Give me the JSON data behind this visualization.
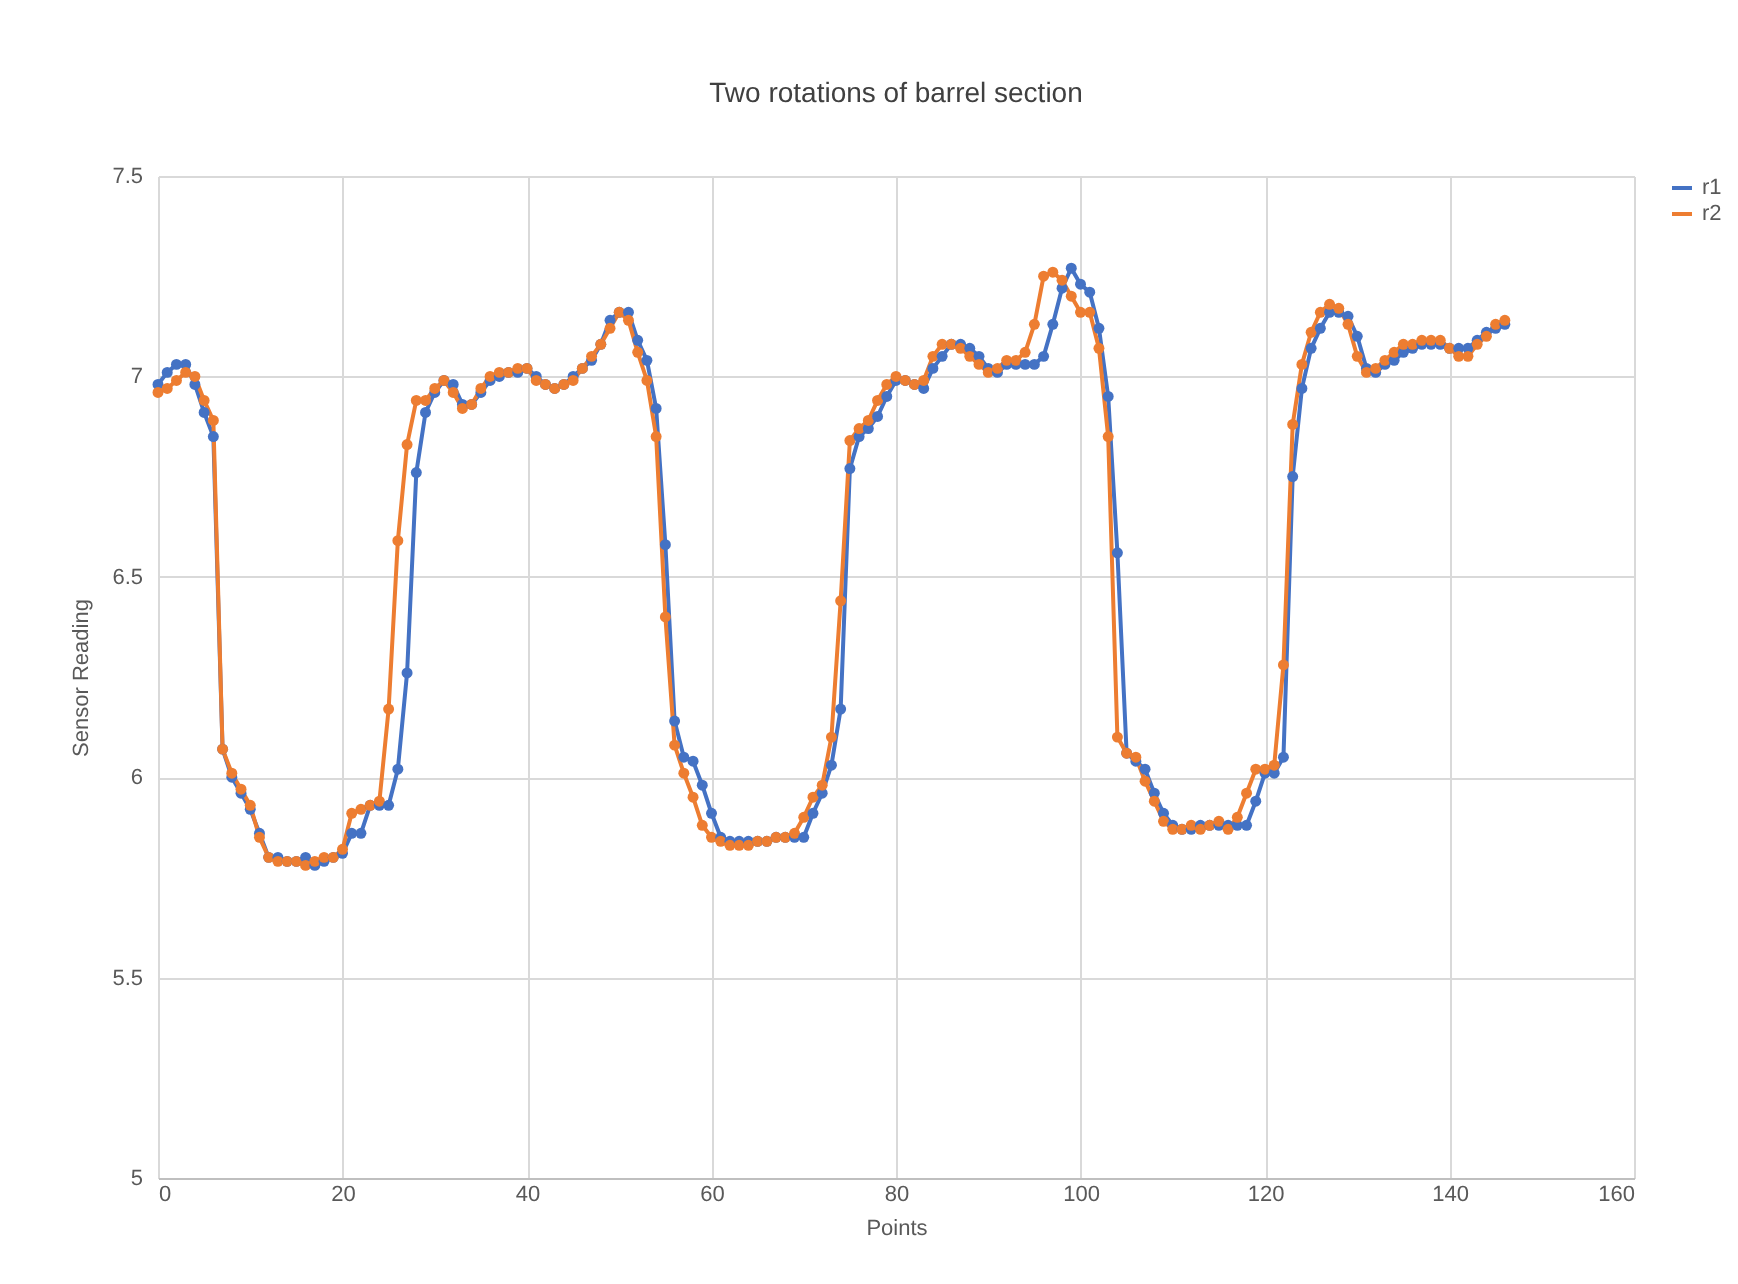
{
  "chart_data": {
    "type": "line",
    "title": "Two rotations of barrel section",
    "xlabel": "Points",
    "ylabel": "Sensor Reading",
    "x": [
      0,
      1,
      2,
      3,
      4,
      5,
      6,
      7,
      8,
      9,
      10,
      11,
      12,
      13,
      14,
      15,
      16,
      17,
      18,
      19,
      20,
      21,
      22,
      23,
      24,
      25,
      26,
      27,
      28,
      29,
      30,
      31,
      32,
      33,
      34,
      35,
      36,
      37,
      38,
      39,
      40,
      41,
      42,
      43,
      44,
      45,
      46,
      47,
      48,
      49,
      50,
      51,
      52,
      53,
      54,
      55,
      56,
      57,
      58,
      59,
      60,
      61,
      62,
      63,
      64,
      65,
      66,
      67,
      68,
      69,
      70,
      71,
      72,
      73,
      74,
      75,
      76,
      77,
      78,
      79,
      80,
      81,
      82,
      83,
      84,
      85,
      86,
      87,
      88,
      89,
      90,
      91,
      92,
      93,
      94,
      95,
      96,
      97,
      98,
      99,
      100,
      101,
      102,
      103,
      104,
      105,
      106,
      107,
      108,
      109,
      110,
      111,
      112,
      113,
      114,
      115,
      116,
      117,
      118,
      119,
      120,
      121,
      122,
      123,
      124,
      125,
      126,
      127,
      128,
      129,
      130,
      131,
      132,
      133,
      134,
      135,
      136,
      137,
      138,
      139,
      140,
      141,
      142,
      143,
      144,
      145,
      146
    ],
    "series": [
      {
        "name": "r1",
        "color": "#4472c4",
        "values": [
          6.98,
          7.01,
          7.03,
          7.03,
          6.98,
          6.91,
          6.85,
          6.07,
          6.0,
          5.96,
          5.92,
          5.86,
          5.8,
          5.8,
          5.79,
          5.79,
          5.8,
          5.78,
          5.79,
          5.8,
          5.81,
          5.86,
          5.86,
          5.93,
          5.93,
          5.93,
          6.02,
          6.26,
          6.76,
          6.91,
          6.96,
          6.99,
          6.98,
          6.93,
          6.93,
          6.96,
          6.99,
          7.0,
          7.01,
          7.01,
          7.02,
          7.0,
          6.98,
          6.97,
          6.98,
          7.0,
          7.02,
          7.04,
          7.08,
          7.14,
          7.16,
          7.16,
          7.09,
          7.04,
          6.92,
          6.58,
          6.14,
          6.05,
          6.04,
          5.98,
          5.91,
          5.85,
          5.84,
          5.84,
          5.84,
          5.84,
          5.84,
          5.85,
          5.85,
          5.85,
          5.85,
          5.91,
          5.96,
          6.03,
          6.17,
          6.77,
          6.85,
          6.87,
          6.9,
          6.95,
          6.99,
          6.99,
          6.98,
          6.97,
          7.02,
          7.05,
          7.08,
          7.08,
          7.07,
          7.05,
          7.02,
          7.01,
          7.03,
          7.03,
          7.03,
          7.03,
          7.05,
          7.13,
          7.22,
          7.27,
          7.23,
          7.21,
          7.12,
          6.95,
          6.56,
          6.06,
          6.04,
          6.02,
          5.96,
          5.91,
          5.88,
          5.87,
          5.87,
          5.88,
          5.88,
          5.88,
          5.88,
          5.88,
          5.88,
          5.94,
          6.01,
          6.01,
          6.05,
          6.75,
          6.97,
          7.07,
          7.12,
          7.16,
          7.16,
          7.15,
          7.1,
          7.02,
          7.01,
          7.03,
          7.04,
          7.06,
          7.07,
          7.08,
          7.08,
          7.08,
          7.07,
          7.07,
          7.07,
          7.09,
          7.11,
          7.12,
          7.13
        ]
      },
      {
        "name": "r2",
        "color": "#ed7d31",
        "values": [
          6.96,
          6.97,
          6.99,
          7.01,
          7.0,
          6.94,
          6.89,
          6.07,
          6.01,
          5.97,
          5.93,
          5.85,
          5.8,
          5.79,
          5.79,
          5.79,
          5.78,
          5.79,
          5.8,
          5.8,
          5.82,
          5.91,
          5.92,
          5.93,
          5.94,
          6.17,
          6.59,
          6.83,
          6.94,
          6.94,
          6.97,
          6.99,
          6.96,
          6.92,
          6.93,
          6.97,
          7.0,
          7.01,
          7.01,
          7.02,
          7.02,
          6.99,
          6.98,
          6.97,
          6.98,
          6.99,
          7.02,
          7.05,
          7.08,
          7.12,
          7.16,
          7.14,
          7.06,
          6.99,
          6.85,
          6.4,
          6.08,
          6.01,
          5.95,
          5.88,
          5.85,
          5.84,
          5.83,
          5.83,
          5.83,
          5.84,
          5.84,
          5.85,
          5.85,
          5.86,
          5.9,
          5.95,
          5.98,
          6.1,
          6.44,
          6.84,
          6.87,
          6.89,
          6.94,
          6.98,
          7.0,
          6.99,
          6.98,
          6.99,
          7.05,
          7.08,
          7.08,
          7.07,
          7.05,
          7.03,
          7.01,
          7.02,
          7.04,
          7.04,
          7.06,
          7.13,
          7.25,
          7.26,
          7.24,
          7.2,
          7.16,
          7.16,
          7.07,
          6.85,
          6.1,
          6.06,
          6.05,
          5.99,
          5.94,
          5.89,
          5.87,
          5.87,
          5.88,
          5.87,
          5.88,
          5.89,
          5.87,
          5.9,
          5.96,
          6.02,
          6.02,
          6.03,
          6.28,
          6.88,
          7.03,
          7.11,
          7.16,
          7.18,
          7.17,
          7.13,
          7.05,
          7.01,
          7.02,
          7.04,
          7.06,
          7.08,
          7.08,
          7.09,
          7.09,
          7.09,
          7.07,
          7.05,
          7.05,
          7.08,
          7.1,
          7.13,
          7.14
        ]
      }
    ],
    "xlim": [
      0,
      160
    ],
    "xticks": [
      0,
      20,
      40,
      60,
      80,
      100,
      120,
      140,
      160
    ],
    "ylim": [
      5,
      7.5
    ],
    "yticks": [
      5,
      5.5,
      6,
      6.5,
      7,
      7.5
    ],
    "grid": true,
    "legend": "right",
    "marker": "circle",
    "line_style": "solid"
  }
}
